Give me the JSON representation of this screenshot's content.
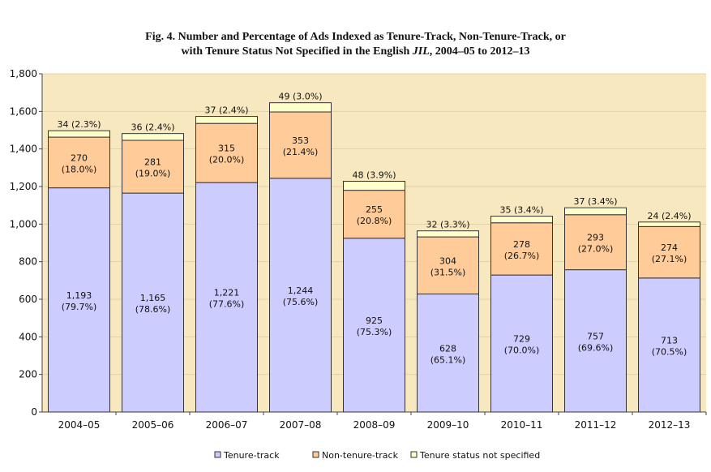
{
  "chart_data": {
    "type": "bar",
    "stacked": true,
    "title_line1": "Fig. 4. Number and Percentage of Ads Indexed as Tenure-Track, Non-Tenure-Track, or",
    "title_line2_prefix": "with Tenure Status Not Specified in the English ",
    "title_line2_italic": "JIL",
    "title_line2_suffix": ", 2004–05 to 2012–13",
    "xlabel": "",
    "ylabel": "",
    "ylim": [
      0,
      1800
    ],
    "yticks": [
      0,
      200,
      400,
      600,
      800,
      1000,
      1200,
      1400,
      1600,
      1800
    ],
    "ytick_labels": [
      "0",
      "200",
      "400",
      "600",
      "800",
      "1,000",
      "1,200",
      "1,400",
      "1,600",
      "1,800"
    ],
    "grid": true,
    "legend_position": "bottom",
    "categories": [
      "2004–05",
      "2005–06",
      "2006–07",
      "2007–08",
      "2008–09",
      "2009–10",
      "2010–11",
      "2011–12",
      "2012–13"
    ],
    "series": [
      {
        "name": "Tenure-track",
        "color": "#ccccff",
        "values": [
          1193,
          1165,
          1221,
          1244,
          925,
          628,
          729,
          757,
          713
        ],
        "labels": [
          "1,193",
          "1,165",
          "1,221",
          "1,244",
          "925",
          "628",
          "729",
          "757",
          "713"
        ],
        "percents": [
          "(79.7%)",
          "(78.6%)",
          "(77.6%)",
          "(75.6%)",
          "(75.3%)",
          "(65.1%)",
          "(70.0%)",
          "(69.6%)",
          "(70.5%)"
        ]
      },
      {
        "name": "Non-tenure-track",
        "color": "#ffcc99",
        "values": [
          270,
          281,
          315,
          353,
          255,
          304,
          278,
          293,
          274
        ],
        "labels": [
          "270",
          "281",
          "315",
          "353",
          "255",
          "304",
          "278",
          "293",
          "274"
        ],
        "percents": [
          "(18.0%)",
          "(19.0%)",
          "(20.0%)",
          "(21.4%)",
          "(20.8%)",
          "(31.5%)",
          "(26.7%)",
          "(27.0%)",
          "(27.1%)"
        ]
      },
      {
        "name": "Tenure status not specified",
        "color": "#ffffcc",
        "values": [
          34,
          36,
          37,
          49,
          48,
          32,
          35,
          37,
          24
        ],
        "labels": [
          "34 (2.3%)",
          "36 (2.4%)",
          "37 (2.4%)",
          "49 (3.0%)",
          "48 (3.9%)",
          "32 (3.3%)",
          "35 (3.4%)",
          "37 (3.4%)",
          "24 (2.4%)"
        ]
      }
    ],
    "plot_background": "#f7e8c0",
    "gridline_color": "#e0d2a8"
  }
}
